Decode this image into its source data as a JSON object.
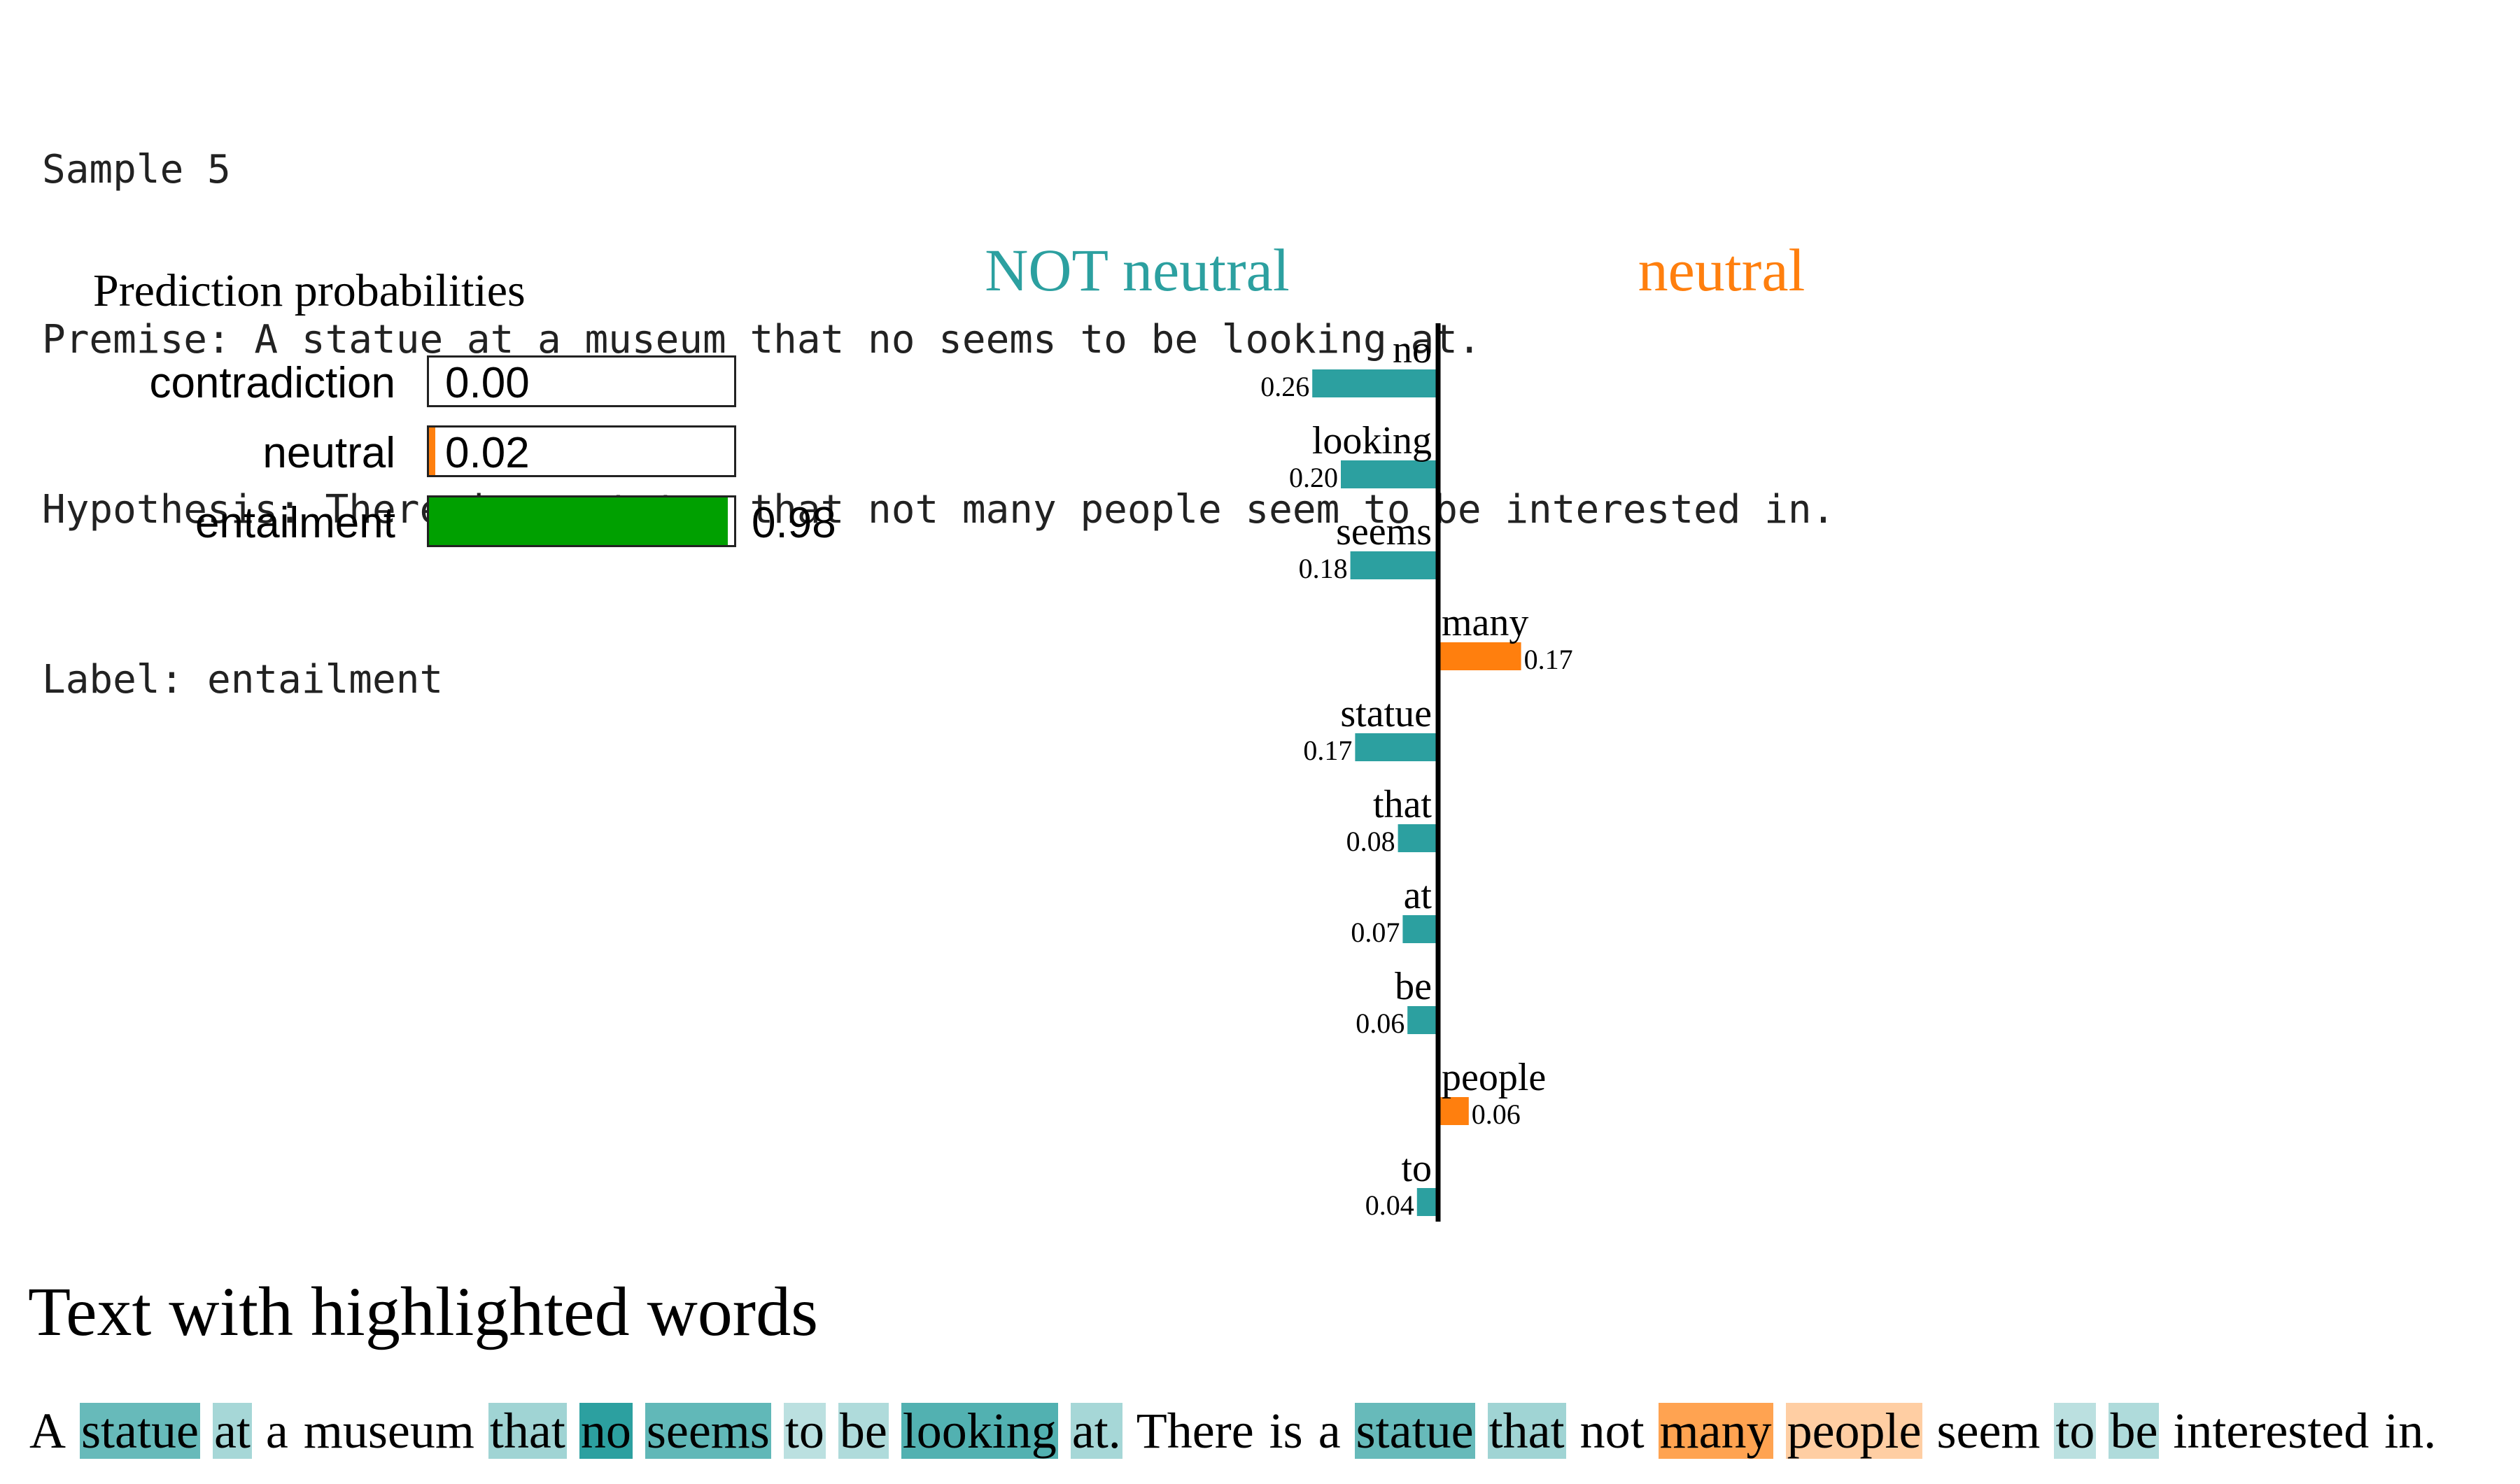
{
  "header": {
    "sample": "Sample 5",
    "premise": "Premise: A statue at a museum that no seems to be looking at.",
    "hypothesis": "Hypothesis: There is a statue that not many people seem to be interested in.",
    "label": "Label: entailment"
  },
  "prediction": {
    "title": "Prediction probabilities",
    "classes": [
      {
        "name": "contradiction",
        "value": 0.0,
        "value_text": "0.00",
        "color": "#0000ff"
      },
      {
        "name": "neutral",
        "value": 0.02,
        "value_text": "0.02",
        "color": "#ff7f0e"
      },
      {
        "name": "entailment",
        "value": 0.98,
        "value_text": "0.98",
        "color": "#00a000"
      }
    ]
  },
  "chart_data": {
    "type": "bar",
    "orientation": "horizontal",
    "left_title": "NOT neutral",
    "right_title": "neutral",
    "colors": {
      "negative": "#2ca0a0",
      "positive": "#ff7f0e"
    },
    "features": [
      {
        "word": "no",
        "value": -0.26,
        "label": "0.26"
      },
      {
        "word": "looking",
        "value": -0.2,
        "label": "0.20"
      },
      {
        "word": "seems",
        "value": -0.18,
        "label": "0.18"
      },
      {
        "word": "many",
        "value": 0.17,
        "label": "0.17"
      },
      {
        "word": "statue",
        "value": -0.17,
        "label": "0.17"
      },
      {
        "word": "that",
        "value": -0.08,
        "label": "0.08"
      },
      {
        "word": "at",
        "value": -0.07,
        "label": "0.07"
      },
      {
        "word": "be",
        "value": -0.06,
        "label": "0.06"
      },
      {
        "word": "people",
        "value": 0.06,
        "label": "0.06"
      },
      {
        "word": "to",
        "value": -0.04,
        "label": "0.04"
      }
    ]
  },
  "highlight": {
    "title": "Text with highlighted words",
    "words": [
      {
        "t": "A",
        "w": 0
      },
      {
        "t": "statue",
        "w": -0.17
      },
      {
        "t": "at",
        "w": -0.07
      },
      {
        "t": "a",
        "w": 0
      },
      {
        "t": "museum",
        "w": 0
      },
      {
        "t": "that",
        "w": -0.08
      },
      {
        "t": "no",
        "w": -0.26
      },
      {
        "t": "seems",
        "w": -0.18
      },
      {
        "t": "to",
        "w": -0.04
      },
      {
        "t": "be",
        "w": -0.06
      },
      {
        "t": "looking",
        "w": -0.2
      },
      {
        "t": "at.",
        "w": -0.07
      },
      {
        "t": "There",
        "w": 0
      },
      {
        "t": "is",
        "w": 0
      },
      {
        "t": "a",
        "w": 0
      },
      {
        "t": "statue",
        "w": -0.17
      },
      {
        "t": "that",
        "w": -0.08
      },
      {
        "t": "not",
        "w": 0
      },
      {
        "t": "many",
        "w": 0.17
      },
      {
        "t": "people",
        "w": 0.06
      },
      {
        "t": "seem",
        "w": 0
      },
      {
        "t": "to",
        "w": -0.04
      },
      {
        "t": "be",
        "w": -0.06
      },
      {
        "t": "interested",
        "w": 0
      },
      {
        "t": "in.",
        "w": 0
      }
    ]
  }
}
